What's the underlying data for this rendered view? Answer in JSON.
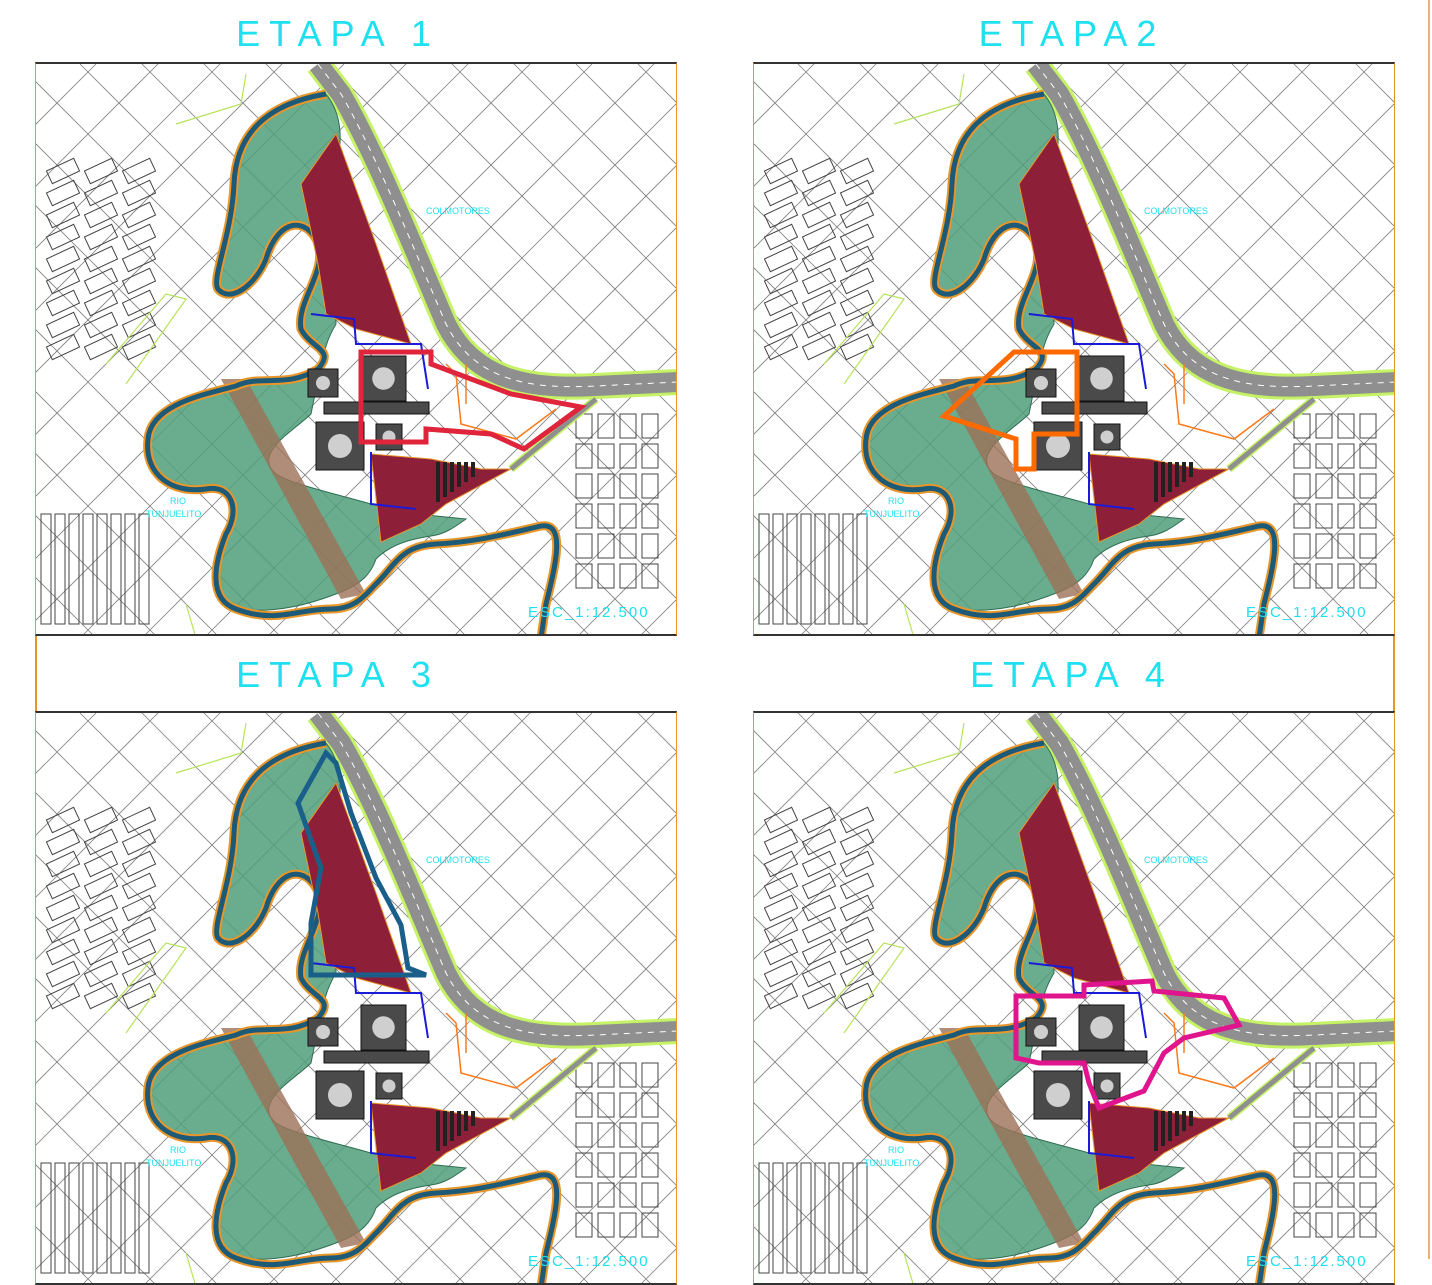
{
  "panels": [
    {
      "title": "ETAPA 1",
      "scale": "ESC_1:12.500",
      "label_company": "COLMOTORES",
      "label_river": [
        "RIO",
        "TUNJUELITO"
      ],
      "phase_color": "#e0243c",
      "phase": "1"
    },
    {
      "title": "ETAPA2",
      "scale": "ESC_1:12.500",
      "label_company": "COLMOTORES",
      "label_river": [
        "RIO",
        "TUNJUELITO"
      ],
      "phase_color": "#ff6a00",
      "phase": "2"
    },
    {
      "title": "ETAPA 3",
      "scale": "ESC_1:12.500",
      "label_company": "COLMOTORES",
      "label_river": [
        "RIO",
        "TUNJUELITO"
      ],
      "phase_color": "#1a5f8a",
      "phase": "3"
    },
    {
      "title": "ETAPA 4",
      "scale": "ESC_1:12.500",
      "label_company": "COLMOTORES",
      "label_river": [
        "RIO",
        "TUNJUELITO"
      ],
      "phase_color": "#e0148c",
      "phase": "4"
    }
  ],
  "colors": {
    "river_outline": "#e8962a",
    "river_core": "#1d5a78",
    "green_zone": "#4f9e7a",
    "red_zone": "#8e1f38",
    "road": "#8f8f8f",
    "road_edge": "#c6f266",
    "text": "#1fe0ee",
    "grid": "#555555",
    "blue_line": "#1a1ad8"
  }
}
